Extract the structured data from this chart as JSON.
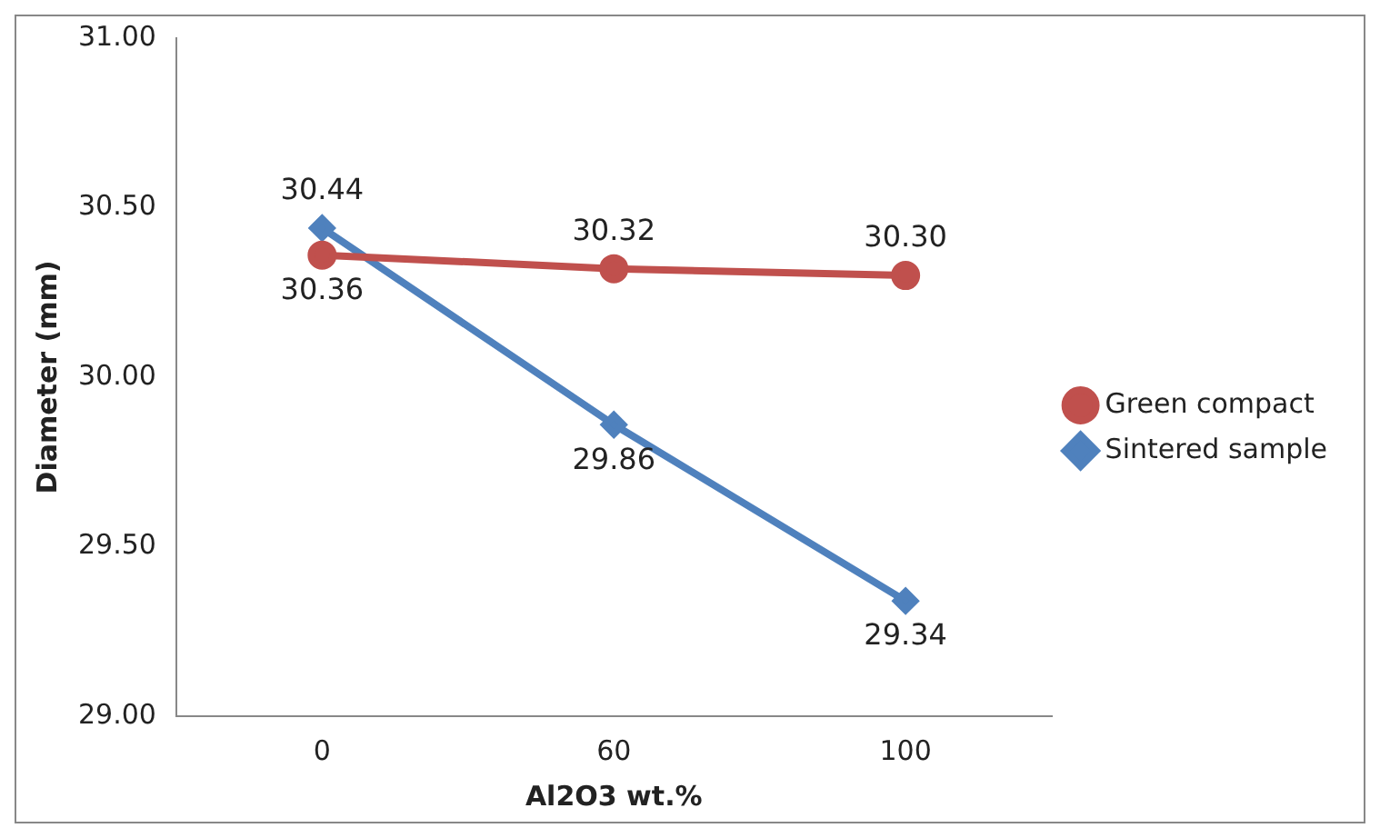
{
  "chart_data": {
    "type": "line",
    "xlabel": "Al2O3 wt.%",
    "ylabel": "Diameter (mm)",
    "categories": [
      "0",
      "60",
      "100"
    ],
    "series": [
      {
        "name": "Green compact",
        "color": "#c0504d",
        "marker": "circle",
        "values": [
          30.36,
          30.32,
          30.3
        ],
        "value_labels": [
          "30.36",
          "30.32",
          "30.30"
        ]
      },
      {
        "name": "Sintered sample",
        "color": "#4f81bd",
        "marker": "diamond",
        "values": [
          30.44,
          29.86,
          29.34
        ],
        "value_labels": [
          "30.44",
          "29.86",
          "29.34"
        ]
      }
    ],
    "ylim": [
      29,
      31
    ],
    "yticks": [
      {
        "value": 29,
        "label": "29.00"
      },
      {
        "value": 29.5,
        "label": "29.50"
      },
      {
        "value": 30,
        "label": "30.00"
      },
      {
        "value": 30.5,
        "label": "30.50"
      },
      {
        "value": 31,
        "label": "31.00"
      }
    ],
    "grid": false,
    "legend": "right",
    "line_style": "solid"
  }
}
